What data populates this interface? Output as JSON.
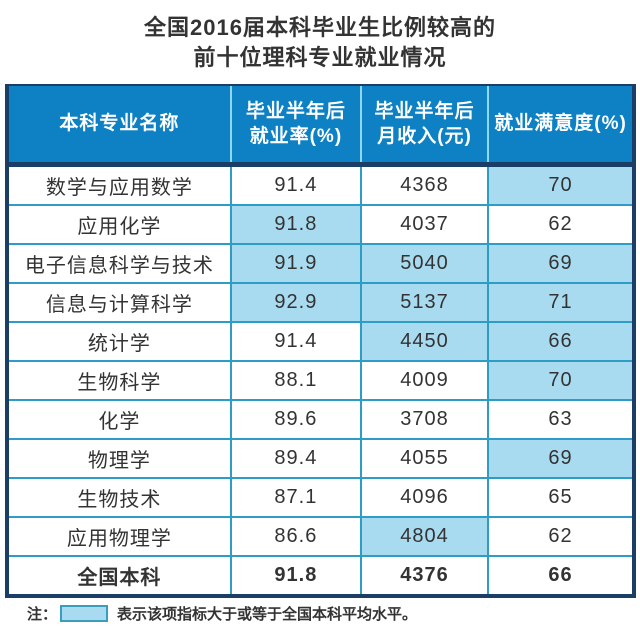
{
  "title": {
    "line1": "全国2016届本科毕业生比例较高的",
    "line2": "前十位理科专业就业情况"
  },
  "chart_data": {
    "type": "table",
    "title": "全国2016届本科毕业生比例较高的前十位理科专业就业情况",
    "columns": [
      {
        "lines": [
          "本科专业名称"
        ]
      },
      {
        "lines": [
          "毕业半年后",
          "就业率(%)"
        ]
      },
      {
        "lines": [
          "毕业半年后",
          "月收入(元)"
        ]
      },
      {
        "lines": [
          "就业满意度(%)"
        ]
      }
    ],
    "rows": [
      {
        "cells": [
          "数学与应用数学",
          "91.4",
          "4368",
          "70"
        ],
        "highlights": [
          false,
          false,
          false,
          true
        ],
        "bold": false
      },
      {
        "cells": [
          "应用化学",
          "91.8",
          "4037",
          "62"
        ],
        "highlights": [
          false,
          true,
          false,
          false
        ],
        "bold": false
      },
      {
        "cells": [
          "电子信息科学与技术",
          "91.9",
          "5040",
          "69"
        ],
        "highlights": [
          false,
          true,
          true,
          true
        ],
        "bold": false
      },
      {
        "cells": [
          "信息与计算科学",
          "92.9",
          "5137",
          "71"
        ],
        "highlights": [
          false,
          true,
          true,
          true
        ],
        "bold": false
      },
      {
        "cells": [
          "统计学",
          "91.4",
          "4450",
          "66"
        ],
        "highlights": [
          false,
          false,
          true,
          true
        ],
        "bold": false
      },
      {
        "cells": [
          "生物科学",
          "88.1",
          "4009",
          "70"
        ],
        "highlights": [
          false,
          false,
          false,
          true
        ],
        "bold": false
      },
      {
        "cells": [
          "化学",
          "89.6",
          "3708",
          "63"
        ],
        "highlights": [
          false,
          false,
          false,
          false
        ],
        "bold": false
      },
      {
        "cells": [
          "物理学",
          "89.4",
          "4055",
          "69"
        ],
        "highlights": [
          false,
          false,
          false,
          true
        ],
        "bold": false
      },
      {
        "cells": [
          "生物技术",
          "87.1",
          "4096",
          "65"
        ],
        "highlights": [
          false,
          false,
          false,
          false
        ],
        "bold": false
      },
      {
        "cells": [
          "应用物理学",
          "86.6",
          "4804",
          "62"
        ],
        "highlights": [
          false,
          false,
          true,
          false
        ],
        "bold": false
      },
      {
        "cells": [
          "全国本科",
          "91.8",
          "4376",
          "66"
        ],
        "highlights": [
          false,
          false,
          false,
          false
        ],
        "bold": true
      }
    ],
    "highlight_meaning": "该项指标大于或等于全国本科平均水平",
    "legend_position": "bottom"
  },
  "note": {
    "prefix": "注：",
    "text": "表示该项指标大于或等于全国本科平均水平。"
  },
  "colors": {
    "header_bg": "#0d81c4",
    "header_text": "#ffffff",
    "highlight_bg": "#a9dbf0",
    "grid_line": "#2e9dc6",
    "header_separator": "#8fd9ea",
    "outer_border": "#1a3e66",
    "text": "#333333"
  }
}
